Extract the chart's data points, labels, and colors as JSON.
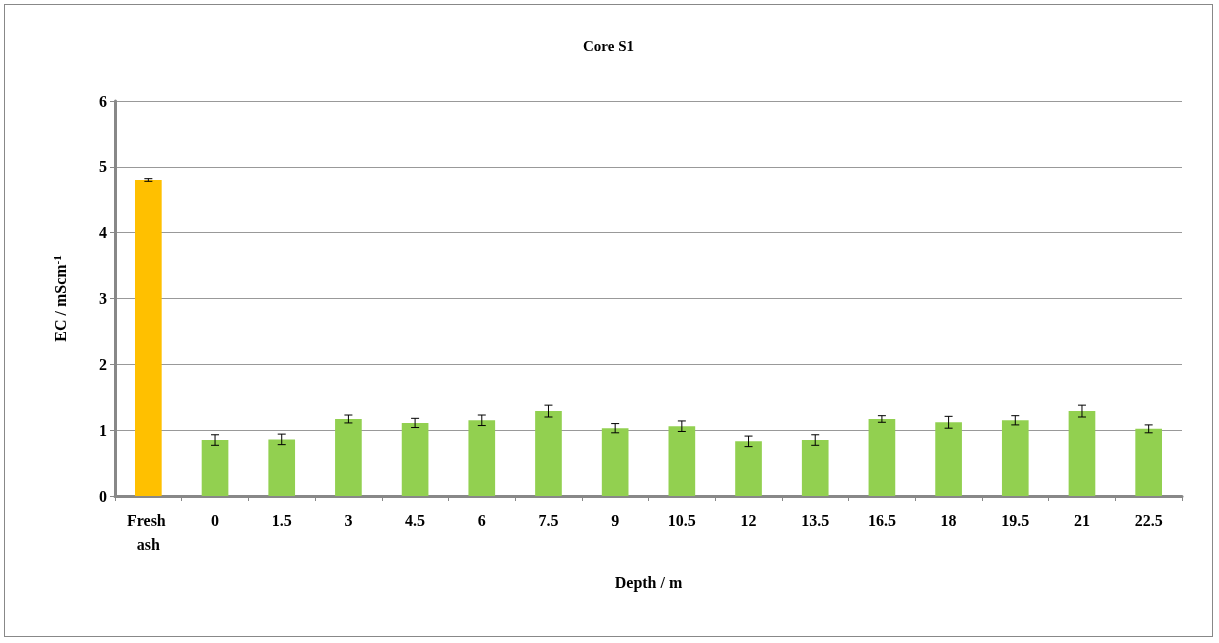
{
  "chart_data": {
    "type": "bar",
    "title": "Core S1",
    "xlabel": "Depth / m",
    "ylabel": "EC / mScm$^{-1}$",
    "categories": [
      "Fresh ash",
      "0",
      "1.5",
      "3",
      "4.5",
      "6",
      "7.5",
      "9",
      "10.5",
      "12",
      "13.5",
      "16.5",
      "18",
      "19.5",
      "21",
      "22.5"
    ],
    "values": [
      4.8,
      0.85,
      0.86,
      1.17,
      1.11,
      1.15,
      1.29,
      1.03,
      1.06,
      0.83,
      0.85,
      1.17,
      1.12,
      1.15,
      1.29,
      1.02
    ],
    "errors": [
      0.02,
      0.08,
      0.08,
      0.06,
      0.07,
      0.08,
      0.09,
      0.07,
      0.08,
      0.08,
      0.08,
      0.05,
      0.09,
      0.07,
      0.09,
      0.06
    ],
    "colors": [
      "#ffc000",
      "#92d050",
      "#92d050",
      "#92d050",
      "#92d050",
      "#92d050",
      "#92d050",
      "#92d050",
      "#92d050",
      "#92d050",
      "#92d050",
      "#92d050",
      "#92d050",
      "#92d050",
      "#92d050",
      "#92d050"
    ],
    "ylim": [
      0,
      6
    ],
    "yticks": [
      0,
      1,
      2,
      3,
      4,
      5,
      6
    ],
    "grid": "y"
  }
}
